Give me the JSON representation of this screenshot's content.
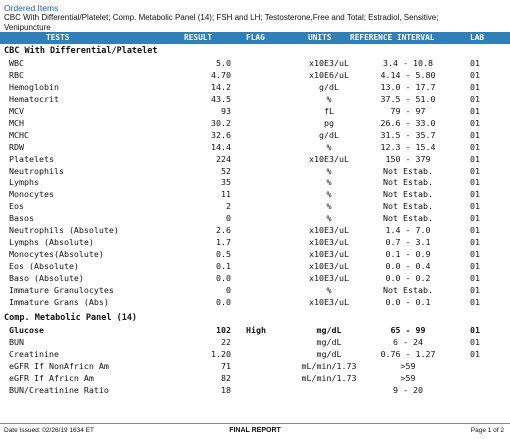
{
  "header": {
    "title": "Ordered Items",
    "line1": "CBC With Differential/Platelet; Comp. Metabolic Panel (14); FSH and LH; Testosterone,Free and Total; Estradiol, Sensitive;",
    "line2": "Venipuncture"
  },
  "columns": {
    "tests": "TESTS",
    "result": "RESULT",
    "flag": "FLAG",
    "units": "UNITS",
    "reference": "REFERENCE INTERVAL",
    "lab": "LAB"
  },
  "sections": [
    {
      "name": "CBC With Differential/Platelet",
      "rows": [
        {
          "test": "WBC",
          "result": "5.0",
          "flag": "",
          "units": "x10E3/uL",
          "ref": "3.4 - 10.8",
          "lab": "01"
        },
        {
          "test": "RBC",
          "result": "4.70",
          "flag": "",
          "units": "x10E6/uL",
          "ref": "4.14 - 5.80",
          "lab": "01"
        },
        {
          "test": "Hemoglobin",
          "result": "14.2",
          "flag": "",
          "units": "g/dL",
          "ref": "13.0 - 17.7",
          "lab": "01"
        },
        {
          "test": "Hematocrit",
          "result": "43.5",
          "flag": "",
          "units": "%",
          "ref": "37.5 - 51.0",
          "lab": "01"
        },
        {
          "test": "MCV",
          "result": "93",
          "flag": "",
          "units": "fL",
          "ref": "79 - 97",
          "lab": "01"
        },
        {
          "test": "MCH",
          "result": "30.2",
          "flag": "",
          "units": "pg",
          "ref": "26.6 - 33.0",
          "lab": "01"
        },
        {
          "test": "MCHC",
          "result": "32.6",
          "flag": "",
          "units": "g/dL",
          "ref": "31.5 - 35.7",
          "lab": "01"
        },
        {
          "test": "RDW",
          "result": "14.4",
          "flag": "",
          "units": "%",
          "ref": "12.3 - 15.4",
          "lab": "01"
        },
        {
          "test": "Platelets",
          "result": "224",
          "flag": "",
          "units": "x10E3/uL",
          "ref": "150 - 379",
          "lab": "01"
        },
        {
          "test": "Neutrophils",
          "result": "52",
          "flag": "",
          "units": "%",
          "ref": "Not Estab.",
          "lab": "01"
        },
        {
          "test": "Lymphs",
          "result": "35",
          "flag": "",
          "units": "%",
          "ref": "Not Estab.",
          "lab": "01"
        },
        {
          "test": "Monocytes",
          "result": "11",
          "flag": "",
          "units": "%",
          "ref": "Not Estab.",
          "lab": "01"
        },
        {
          "test": "Eos",
          "result": "2",
          "flag": "",
          "units": "%",
          "ref": "Not Estab.",
          "lab": "01"
        },
        {
          "test": "Basos",
          "result": "0",
          "flag": "",
          "units": "%",
          "ref": "Not Estab.",
          "lab": "01"
        },
        {
          "test": "Neutrophils (Absolute)",
          "result": "2.6",
          "flag": "",
          "units": "x10E3/uL",
          "ref": "1.4 - 7.0",
          "lab": "01"
        },
        {
          "test": "Lymphs (Absolute)",
          "result": "1.7",
          "flag": "",
          "units": "x10E3/uL",
          "ref": "0.7 - 3.1",
          "lab": "01"
        },
        {
          "test": "Monocytes(Absolute)",
          "result": "0.5",
          "flag": "",
          "units": "x10E3/uL",
          "ref": "0.1 - 0.9",
          "lab": "01"
        },
        {
          "test": "Eos (Absolute)",
          "result": "0.1",
          "flag": "",
          "units": "x10E3/uL",
          "ref": "0.0 - 0.4",
          "lab": "01"
        },
        {
          "test": "Baso (Absolute)",
          "result": "0.0",
          "flag": "",
          "units": "x10E3/uL",
          "ref": "0.0 - 0.2",
          "lab": "01"
        },
        {
          "test": "Immature Granulocytes",
          "result": "0",
          "flag": "",
          "units": "%",
          "ref": "Not Estab.",
          "lab": "01"
        },
        {
          "test": "Immature Grans (Abs)",
          "result": "0.0",
          "flag": "",
          "units": "x10E3/uL",
          "ref": "0.0 - 0.1",
          "lab": "01"
        }
      ]
    },
    {
      "name": "Comp. Metabolic Panel (14)",
      "rows": [
        {
          "test": "Glucose",
          "result": "102",
          "flag": "High",
          "units": "mg/dL",
          "ref": "65 - 99",
          "lab": "01",
          "bold": true
        },
        {
          "test": "BUN",
          "result": "22",
          "flag": "",
          "units": "mg/dL",
          "ref": "6 - 24",
          "lab": "01"
        },
        {
          "test": "Creatinine",
          "result": "1.20",
          "flag": "",
          "units": "mg/dL",
          "ref": "0.76 - 1.27",
          "lab": "01"
        },
        {
          "test": "eGFR If NonAfricn Am",
          "result": "71",
          "flag": "",
          "units": "mL/min/1.73",
          "ref": ">59",
          "lab": ""
        },
        {
          "test": "eGFR If Africn Am",
          "result": "82",
          "flag": "",
          "units": "mL/min/1.73",
          "ref": ">59",
          "lab": ""
        },
        {
          "test": "BUN/Creatinine Ratio",
          "result": "18",
          "flag": "",
          "units": "",
          "ref": "9 - 20",
          "lab": ""
        }
      ]
    }
  ],
  "footer": {
    "date": "Date Issued: 02/26/19 1634 ET",
    "status": "FINAL REPORT",
    "page": "Page 1 of 2"
  }
}
